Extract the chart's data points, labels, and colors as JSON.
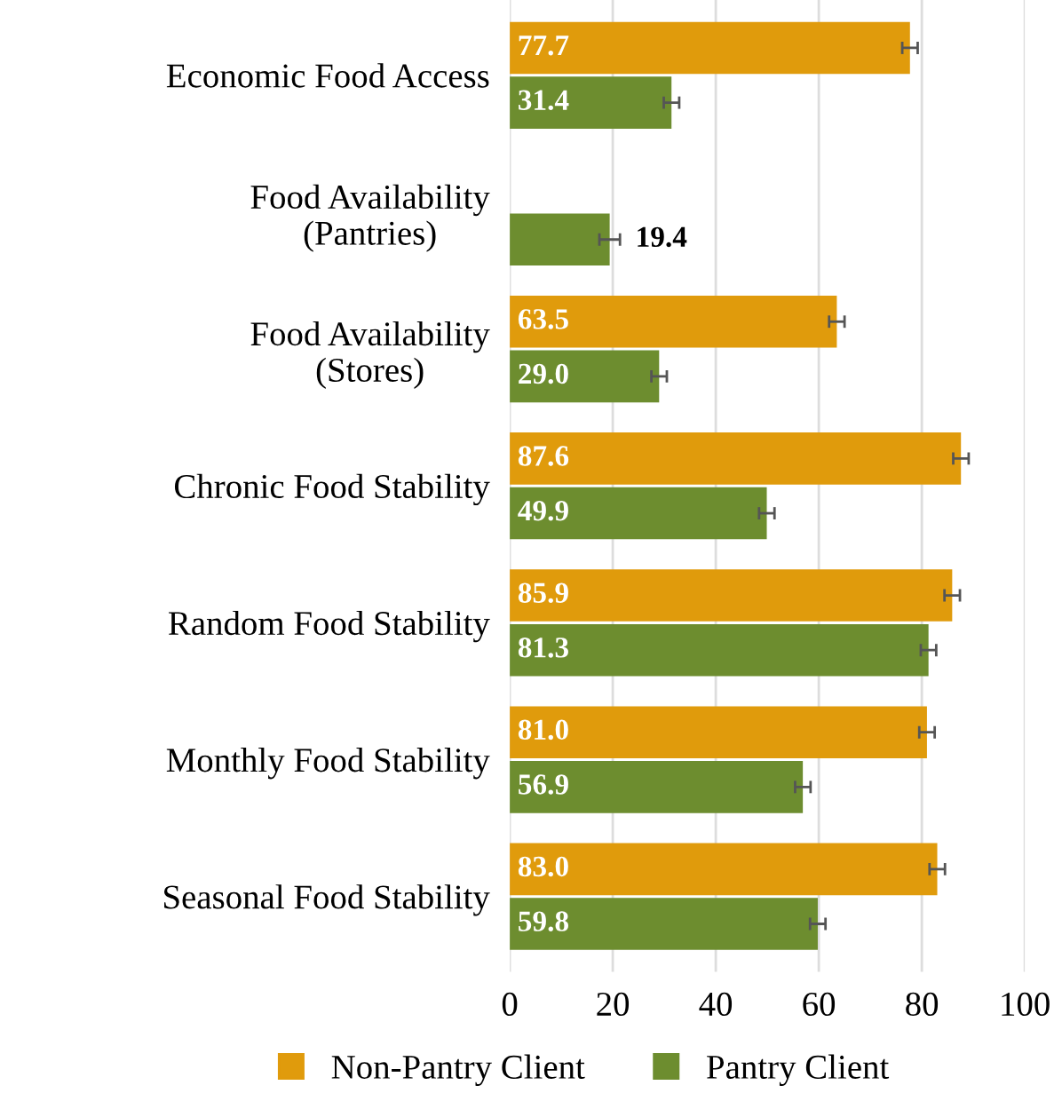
{
  "chart_data": {
    "type": "bar",
    "orientation": "horizontal",
    "categories": [
      "Economic Food Access",
      "Food Availability\n(Pantries)",
      "Food Availability\n(Stores)",
      "Chronic Food Stability",
      "Random Food Stability",
      "Monthly Food Stability",
      "Seasonal Food Stability"
    ],
    "series": [
      {
        "name": "Non-Pantry Client",
        "color": "#e09b0c",
        "values": [
          77.7,
          null,
          63.5,
          87.6,
          85.9,
          81.0,
          83.0
        ],
        "value_labels": [
          "77.7",
          null,
          "63.5",
          "87.6",
          "85.9",
          "81.0",
          "83.0"
        ],
        "errors": [
          1.5,
          null,
          1.5,
          1.5,
          1.5,
          1.5,
          1.5
        ]
      },
      {
        "name": "Pantry Client",
        "color": "#6d8d2f",
        "values": [
          31.4,
          19.4,
          29.0,
          49.9,
          81.3,
          56.9,
          59.8
        ],
        "value_labels": [
          "31.4",
          "19.4",
          "29.0",
          "49.9",
          "81.3",
          "56.9",
          "59.8"
        ],
        "errors": [
          1.5,
          2,
          1.5,
          1.5,
          1.5,
          1.5,
          1.5
        ]
      }
    ],
    "xlim": [
      0,
      100
    ],
    "xticks": [
      0,
      20,
      40,
      60,
      80,
      100
    ],
    "grid": "x",
    "legend": "bottom"
  }
}
